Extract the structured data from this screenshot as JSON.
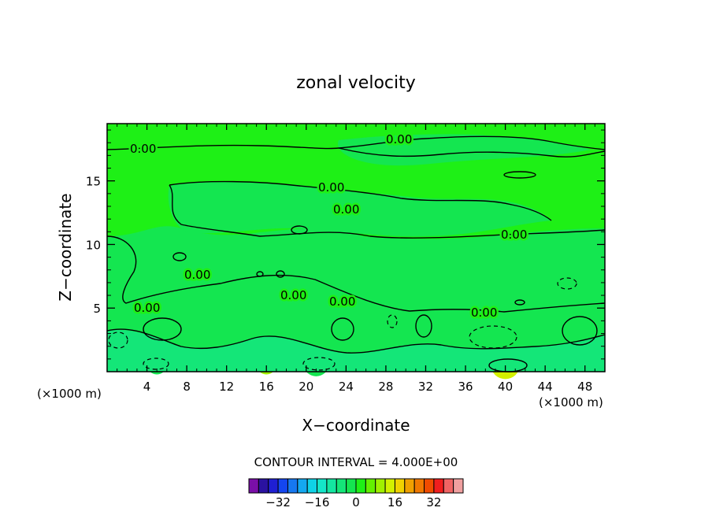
{
  "chart_data": {
    "type": "heatmap",
    "title": "zonal velocity",
    "xlabel": "X−coordinate",
    "ylabel": "Z−coordinate",
    "x_unit": "(×1000 m)",
    "z_unit": "(×1000 m)",
    "xlim": [
      0,
      50
    ],
    "ylim": [
      0,
      19.5
    ],
    "x_ticks": [
      "4",
      "8",
      "12",
      "16",
      "20",
      "24",
      "28",
      "32",
      "36",
      "40",
      "44",
      "48"
    ],
    "y_ticks": [
      "5",
      "10",
      "15"
    ],
    "contour_interval_label": "CONTOUR INTERVAL = 4.000E+00",
    "contour_labels": [
      "0.00",
      "0.00",
      "0.00",
      "0.00",
      "0.00",
      "0.00",
      "0.00",
      "0.00",
      "0.00",
      "0.00"
    ],
    "colorbar": {
      "levels": [
        -40,
        -36,
        -32,
        -28,
        -24,
        -20,
        -16,
        -12,
        -8,
        -4,
        0,
        4,
        8,
        12,
        16,
        20,
        24,
        28,
        32,
        36,
        40
      ],
      "colors": [
        "#7a0fa8",
        "#2a12a0",
        "#1f1fd2",
        "#1446f0",
        "#1678f0",
        "#14a8f0",
        "#0fd2e6",
        "#14e6c8",
        "#14e6a0",
        "#14e678",
        "#14e650",
        "#1ef016",
        "#64f000",
        "#a0f000",
        "#d2f000",
        "#f0d200",
        "#f0a000",
        "#f07800",
        "#f04b00",
        "#f01e1e",
        "#f06464",
        "#f0a0a0"
      ],
      "tick_labels": [
        "−32",
        "−16",
        "0",
        "16",
        "32"
      ],
      "tick_values": [
        -32,
        -16,
        0,
        16,
        32
      ]
    },
    "field_blobs": [
      {
        "x": 4,
        "z": 3.7,
        "r": 1.0,
        "v": 8
      },
      {
        "x": 38,
        "z": 3.0,
        "r": 1.4,
        "v": -4
      },
      {
        "x": 46.5,
        "z": 3.0,
        "r": 1.2,
        "v": 8
      },
      {
        "x": 1,
        "z": 2.5,
        "r": 0.6,
        "v": -4
      },
      {
        "x": 40,
        "z": 0.5,
        "r": 0.9,
        "v": 12
      },
      {
        "x": 21,
        "z": 0.6,
        "r": 0.8,
        "v": -4
      },
      {
        "x": 16,
        "z": 0.5,
        "r": 0.6,
        "v": 8
      },
      {
        "x": 5,
        "z": 0.5,
        "r": 0.6,
        "v": -4
      }
    ]
  }
}
